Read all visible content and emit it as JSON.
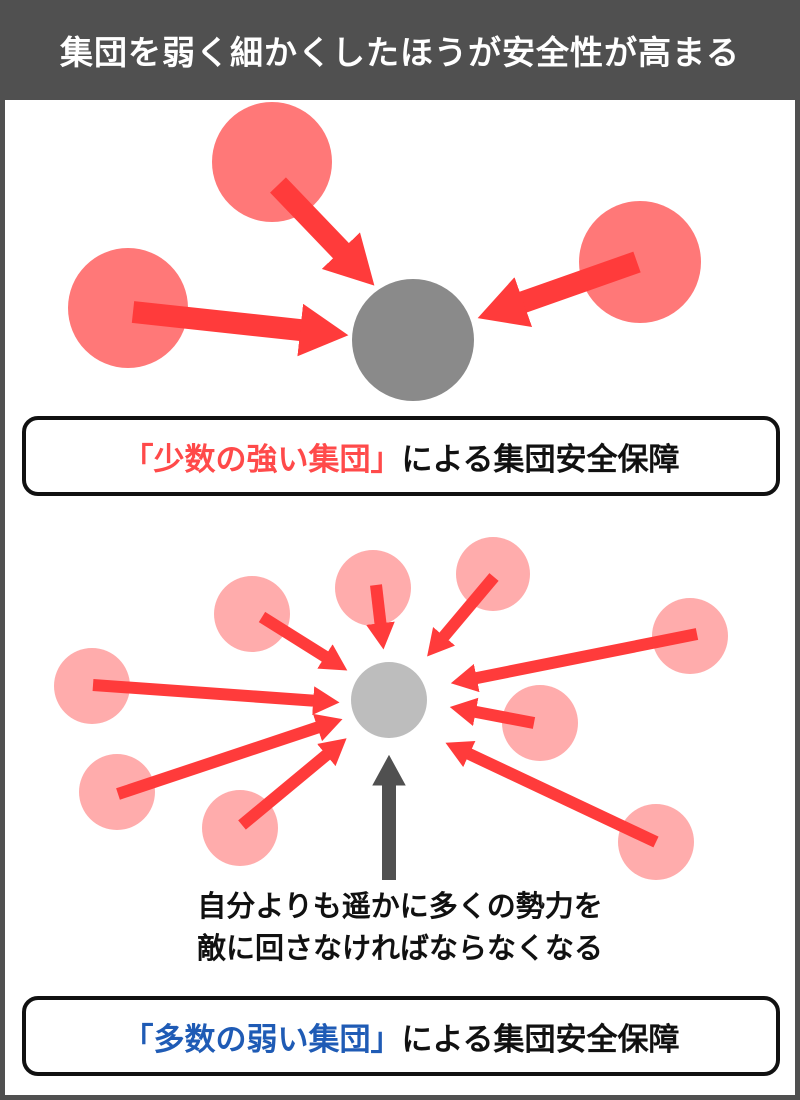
{
  "header": {
    "title": "集団を弱く細かくしたほうが安全性が高まる"
  },
  "section1": {
    "caption_highlight": "「少数の強い集団」",
    "caption_rest": "による集団安全保障"
  },
  "section2": {
    "note_line1": "自分よりも遥かに多くの勢力を",
    "note_line2": "敵に回さなければならなくなる",
    "caption_highlight": "「多数の弱い集団」",
    "caption_rest": "による集団安全保障"
  },
  "colors": {
    "header_bg": "#505050",
    "strong_group": "#ff7878",
    "weak_group": "#ffacac",
    "arrow": "#ff3b3b",
    "center_strong": "#8a8a8a",
    "center_weak": "#bdbdbd",
    "highlight_red": "#ff4a4a",
    "highlight_blue": "#1f5bb5"
  }
}
